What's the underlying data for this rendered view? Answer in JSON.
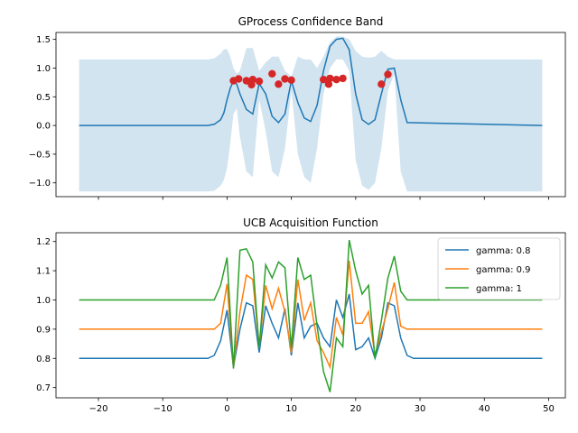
{
  "chart_data": [
    {
      "type": "line",
      "title": "GProcess Confidence Band",
      "xlim": [
        -26.6,
        52.6
      ],
      "ylim": [
        -1.24,
        1.62
      ],
      "xticks": [
        -20,
        -10,
        0,
        10,
        20,
        30,
        40,
        50
      ],
      "yticks": [
        -1.0,
        -0.5,
        0.0,
        0.5,
        1.0,
        1.5
      ],
      "ytick_labels": [
        "−1.0",
        "−0.5",
        "0.0",
        "0.5",
        "1.0",
        "1.5"
      ],
      "show_xtick_labels": false,
      "colors": {
        "mean": "#1f77b4",
        "band": "#1f77b4",
        "points": "#d62728"
      },
      "mean": {
        "x": [
          -23,
          -3,
          -2,
          -1,
          -0.5,
          0,
          0.5,
          1,
          1.5,
          2,
          3,
          4,
          5,
          6,
          7,
          8,
          9,
          9.5,
          10,
          11,
          12,
          13,
          14,
          15,
          16,
          17,
          18,
          19,
          20,
          21,
          22,
          23,
          24,
          25,
          26,
          27,
          28,
          49
        ],
        "y": [
          0,
          0,
          0.02,
          0.1,
          0.22,
          0.45,
          0.65,
          0.78,
          0.72,
          0.55,
          0.28,
          0.2,
          0.73,
          0.55,
          0.16,
          0.05,
          0.2,
          0.5,
          0.78,
          0.4,
          0.13,
          0.07,
          0.35,
          0.95,
          1.38,
          1.5,
          1.52,
          1.32,
          0.55,
          0.1,
          0.02,
          0.1,
          0.55,
          0.98,
          1.0,
          0.45,
          0.05,
          0
        ]
      },
      "band": {
        "x": [
          -23,
          -3,
          -2,
          -1,
          -0.5,
          0,
          0.5,
          1,
          1.5,
          2,
          3,
          4,
          5,
          6,
          7,
          8,
          9,
          9.5,
          10,
          11,
          12,
          13,
          14,
          15,
          16,
          17,
          18,
          19,
          20,
          21,
          22,
          23,
          24,
          25,
          26,
          27,
          28,
          49
        ],
        "upper": [
          1.15,
          1.15,
          1.17,
          1.25,
          1.33,
          1.33,
          1.2,
          1.0,
          0.9,
          0.95,
          1.35,
          1.35,
          0.95,
          1.1,
          1.2,
          1.2,
          0.95,
          0.9,
          0.85,
          1.2,
          1.15,
          1.15,
          1.0,
          1.2,
          1.45,
          1.55,
          1.55,
          1.5,
          1.3,
          1.2,
          1.18,
          1.2,
          1.3,
          1.2,
          1.15,
          1.15,
          1.15,
          1.15
        ],
        "lower": [
          -1.15,
          -1.15,
          -1.14,
          -1.05,
          -0.95,
          -0.75,
          -0.3,
          0.2,
          0.3,
          -0.2,
          -0.8,
          -0.9,
          0.45,
          -0.1,
          -0.8,
          -0.9,
          -0.4,
          0.1,
          0.6,
          -0.5,
          -0.9,
          -1.0,
          -0.4,
          0.55,
          1.0,
          1.15,
          1.15,
          0.95,
          -0.6,
          -1.05,
          -1.12,
          -1.0,
          -0.4,
          0.6,
          0.9,
          -0.8,
          -1.15,
          -1.15
        ]
      },
      "observations": {
        "x": [
          1.0,
          1.8,
          3.0,
          3.8,
          4.0,
          5.0,
          7.0,
          8.0,
          9.0,
          10.0,
          15.0,
          15.8,
          16.0,
          17.0,
          18.0,
          24.0,
          25.0
        ],
        "y": [
          0.78,
          0.81,
          0.78,
          0.71,
          0.8,
          0.77,
          0.9,
          0.72,
          0.81,
          0.79,
          0.8,
          0.72,
          0.82,
          0.8,
          0.82,
          0.72,
          0.89
        ]
      }
    },
    {
      "type": "line",
      "title": "UCB Acquisition Function",
      "xlim": [
        -26.6,
        52.6
      ],
      "ylim": [
        0.665,
        1.23
      ],
      "xticks": [
        -20,
        -10,
        0,
        10,
        20,
        30,
        40,
        50
      ],
      "xtick_labels": [
        "−20",
        "−10",
        "0",
        "10",
        "20",
        "30",
        "40",
        "50"
      ],
      "yticks": [
        0.7,
        0.8,
        0.9,
        1.0,
        1.1,
        1.2
      ],
      "ytick_labels": [
        "0.7",
        "0.8",
        "0.9",
        "1.0",
        "1.1",
        "1.2"
      ],
      "legend_placement": "top-right",
      "x": [
        -23,
        -3,
        -2,
        -1,
        0,
        1,
        2,
        3,
        4,
        5,
        6,
        7,
        8,
        9,
        10,
        11,
        12,
        13,
        14,
        15,
        16,
        17,
        18,
        19,
        20,
        21,
        22,
        23,
        24,
        25,
        26,
        27,
        28,
        29,
        49
      ],
      "series": [
        {
          "name": "gamma: 0.8",
          "color": "#1f77b4",
          "values": [
            0.8,
            0.8,
            0.81,
            0.86,
            0.965,
            0.77,
            0.9,
            0.99,
            0.98,
            0.82,
            0.98,
            0.92,
            0.87,
            0.97,
            0.81,
            0.99,
            0.87,
            0.91,
            0.92,
            0.87,
            0.84,
            1.0,
            0.94,
            1.02,
            0.83,
            0.84,
            0.87,
            0.8,
            0.87,
            0.99,
            0.98,
            0.87,
            0.81,
            0.8,
            0.8
          ]
        },
        {
          "name": "gamma: 0.9",
          "color": "#ff7f0e",
          "values": [
            0.9,
            0.9,
            0.9,
            0.92,
            1.055,
            0.77,
            0.96,
            1.085,
            1.07,
            0.84,
            1.05,
            0.97,
            1.04,
            0.96,
            0.82,
            1.07,
            0.93,
            0.99,
            0.86,
            0.82,
            0.77,
            0.94,
            0.88,
            1.135,
            0.92,
            0.92,
            0.96,
            0.81,
            0.89,
            0.97,
            1.06,
            0.91,
            0.9,
            0.9,
            0.9
          ]
        },
        {
          "name": "gamma: 1",
          "color": "#2ca02c",
          "values": [
            1.0,
            1.0,
            1.0,
            1.05,
            1.145,
            0.765,
            1.17,
            1.175,
            1.13,
            0.835,
            1.12,
            1.075,
            1.13,
            1.11,
            0.835,
            1.145,
            1.07,
            1.085,
            0.91,
            0.755,
            0.685,
            0.87,
            0.84,
            1.205,
            1.1,
            1.02,
            1.05,
            0.8,
            0.93,
            1.075,
            1.15,
            1.03,
            1.0,
            1.0,
            1.0
          ]
        }
      ]
    }
  ]
}
